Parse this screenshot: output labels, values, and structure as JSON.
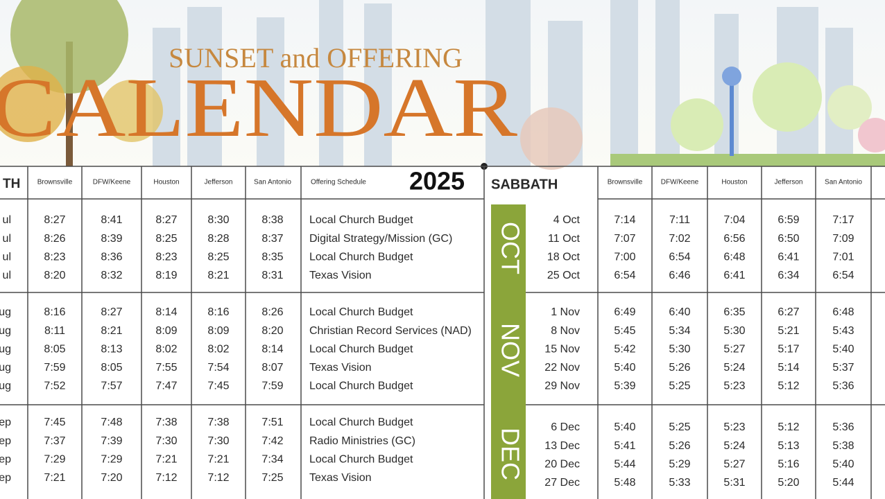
{
  "header": {
    "subtitle": "SUNSET and OFFERING",
    "title": "CALENDAR"
  },
  "left_table": {
    "columns": [
      "TH",
      "Brownsville",
      "DFW/Keene",
      "Houston",
      "Jefferson",
      "San Antonio",
      "Offering Schedule"
    ],
    "year": "2025",
    "groups": [
      {
        "rows": [
          [
            "ul",
            "8:27",
            "8:41",
            "8:27",
            "8:30",
            "8:38",
            "Local Church Budget"
          ],
          [
            "ul",
            "8:26",
            "8:39",
            "8:25",
            "8:28",
            "8:37",
            "Digital Strategy/Mission (GC)"
          ],
          [
            "ul",
            "8:23",
            "8:36",
            "8:23",
            "8:25",
            "8:35",
            "Local Church Budget"
          ],
          [
            "ul",
            "8:20",
            "8:32",
            "8:19",
            "8:21",
            "8:31",
            "Texas Vision"
          ]
        ]
      },
      {
        "rows": [
          [
            "ug",
            "8:16",
            "8:27",
            "8:14",
            "8:16",
            "8:26",
            "Local Church Budget"
          ],
          [
            "ug",
            "8:11",
            "8:21",
            "8:09",
            "8:09",
            "8:20",
            "Christian Record Services (NAD)"
          ],
          [
            "ug",
            "8:05",
            "8:13",
            "8:02",
            "8:02",
            "8:14",
            "Local Church Budget"
          ],
          [
            "ug",
            "7:59",
            "8:05",
            "7:55",
            "7:54",
            "8:07",
            "Texas Vision"
          ],
          [
            "ug",
            "7:52",
            "7:57",
            "7:47",
            "7:45",
            "7:59",
            "Local Church Budget"
          ]
        ]
      },
      {
        "rows": [
          [
            "ep",
            "7:45",
            "7:48",
            "7:38",
            "7:38",
            "7:51",
            "Local Church Budget"
          ],
          [
            "ep",
            "7:37",
            "7:39",
            "7:30",
            "7:30",
            "7:42",
            "Radio Ministries (GC)"
          ],
          [
            "ep",
            "7:29",
            "7:29",
            "7:21",
            "7:21",
            "7:34",
            "Local Church Budget"
          ],
          [
            "ep",
            "7:21",
            "7:20",
            "7:12",
            "7:12",
            "7:25",
            "Texas Vision"
          ]
        ]
      }
    ]
  },
  "right_table": {
    "columns": [
      "SABBATH",
      "Brownsville",
      "DFW/Keene",
      "Houston",
      "Jefferson",
      "San Antonio"
    ],
    "groups": [
      {
        "month": "OCT",
        "rows": [
          [
            "4 Oct",
            "7:14",
            "7:11",
            "7:04",
            "6:59",
            "7:17"
          ],
          [
            "11 Oct",
            "7:07",
            "7:02",
            "6:56",
            "6:50",
            "7:09"
          ],
          [
            "18 Oct",
            "7:00",
            "6:54",
            "6:48",
            "6:41",
            "7:01"
          ],
          [
            "25 Oct",
            "6:54",
            "6:46",
            "6:41",
            "6:34",
            "6:54"
          ]
        ]
      },
      {
        "month": "NOV",
        "rows": [
          [
            "1 Nov",
            "6:49",
            "6:40",
            "6:35",
            "6:27",
            "6:48"
          ],
          [
            "8 Nov",
            "5:45",
            "5:34",
            "5:30",
            "5:21",
            "5:43"
          ],
          [
            "15 Nov",
            "5:42",
            "5:30",
            "5:27",
            "5:17",
            "5:40"
          ],
          [
            "22 Nov",
            "5:40",
            "5:26",
            "5:24",
            "5:14",
            "5:37"
          ],
          [
            "29 Nov",
            "5:39",
            "5:25",
            "5:23",
            "5:12",
            "5:36"
          ]
        ]
      },
      {
        "month": "DEC",
        "rows": [
          [
            "6 Dec",
            "5:40",
            "5:25",
            "5:23",
            "5:12",
            "5:36"
          ],
          [
            "13 Dec",
            "5:41",
            "5:26",
            "5:24",
            "5:13",
            "5:38"
          ],
          [
            "20 Dec",
            "5:44",
            "5:29",
            "5:27",
            "5:16",
            "5:40"
          ],
          [
            "27 Dec",
            "5:48",
            "5:33",
            "5:31",
            "5:20",
            "5:44"
          ]
        ]
      }
    ]
  }
}
